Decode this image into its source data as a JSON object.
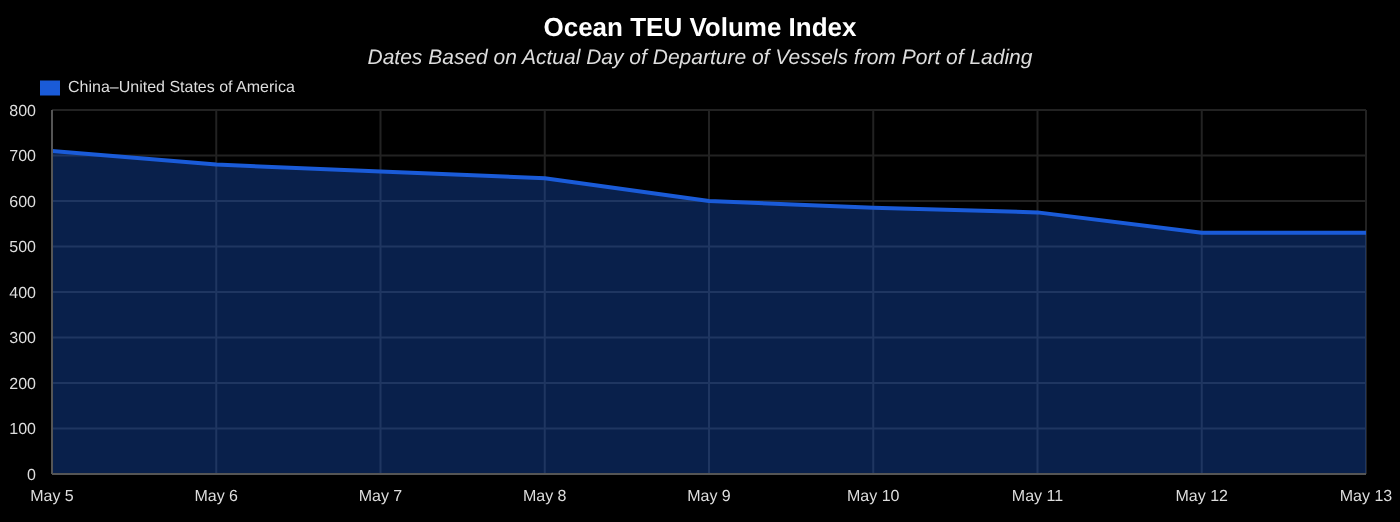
{
  "chart_data": {
    "type": "area",
    "title": "Ocean TEU Volume Index",
    "subtitle": "Dates Based on Actual Day of Departure of Vessels from Port of Lading",
    "categories": [
      "May 5",
      "May 6",
      "May 7",
      "May 8",
      "May 9",
      "May 10",
      "May 11",
      "May 12",
      "May 13"
    ],
    "series": [
      {
        "name": "China–United States of America",
        "color": "#1a5bd8",
        "values": [
          710,
          680,
          665,
          650,
          600,
          585,
          575,
          530,
          530
        ]
      }
    ],
    "ylim": [
      0,
      800
    ],
    "yticks": [
      0,
      100,
      200,
      300,
      400,
      500,
      600,
      700,
      800
    ],
    "grid": true,
    "legend": "top left"
  }
}
